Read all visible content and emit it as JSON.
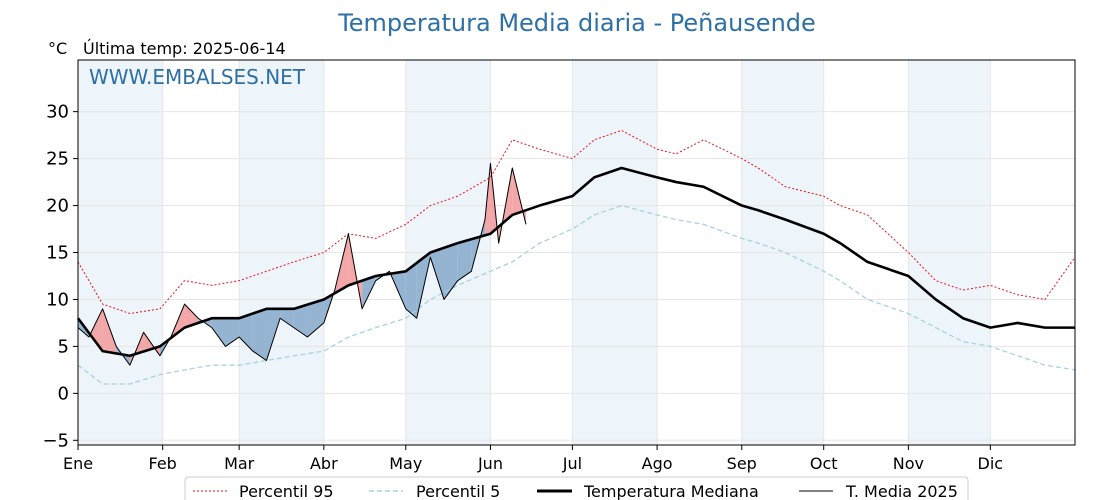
{
  "title": "Temperatura Media diaria - Peñausende",
  "unit_label": "°C",
  "last_temp_label": "Última temp: 2025-06-14",
  "watermark": "WWW.EMBALSES.NET",
  "colors": {
    "title": "#2e6fa6",
    "p95": "#e8161b",
    "p5": "#a8d1e2",
    "median": "#000000",
    "media2025": "#000000",
    "fill_above": "#f2a2a4",
    "fill_below": "#8fb0cf",
    "fill_below_dark": "#2e6fa6",
    "month_band": "#edf4fa"
  },
  "chart_data": {
    "type": "line",
    "xlabel": "",
    "ylabel": "°C",
    "ylim": [
      -5.5,
      35.5
    ],
    "yticks": [
      -5,
      0,
      5,
      10,
      15,
      20,
      25,
      30
    ],
    "ytick_labels": [
      "−5",
      "0",
      "5",
      "10",
      "15",
      "20",
      "25",
      "30"
    ],
    "month_start_days": [
      1,
      32,
      60,
      91,
      121,
      152,
      182,
      213,
      244,
      274,
      305,
      335
    ],
    "month_labels": [
      "Ene",
      "Feb",
      "Mar",
      "Abr",
      "May",
      "Jun",
      "Jul",
      "Ago",
      "Sep",
      "Oct",
      "Nov",
      "Dic"
    ],
    "x_range_days": [
      1,
      366
    ],
    "grid": true,
    "legend_position": "bottom",
    "series": [
      {
        "name": "Percentil 95",
        "style": "dotted-red",
        "days": [
          1,
          10,
          20,
          31,
          40,
          50,
          60,
          70,
          80,
          91,
          100,
          110,
          121,
          130,
          140,
          152,
          160,
          170,
          182,
          190,
          200,
          213,
          220,
          230,
          244,
          250,
          260,
          274,
          280,
          290,
          305,
          315,
          325,
          335,
          345,
          355,
          366
        ],
        "values": [
          14.0,
          9.5,
          8.5,
          9.0,
          12.0,
          11.5,
          12.0,
          13.0,
          14.0,
          15.0,
          17.0,
          16.5,
          18.0,
          20.0,
          21.0,
          23.0,
          27.0,
          26.0,
          25.0,
          27.0,
          28.0,
          26.0,
          25.5,
          27.0,
          25.0,
          24.0,
          22.0,
          21.0,
          20.0,
          19.0,
          15.0,
          12.0,
          11.0,
          11.5,
          10.5,
          10.0,
          14.5
        ]
      },
      {
        "name": "Percentil 5",
        "style": "dashed-lightblue",
        "days": [
          1,
          10,
          20,
          31,
          40,
          50,
          60,
          70,
          80,
          91,
          100,
          110,
          121,
          130,
          140,
          152,
          160,
          170,
          182,
          190,
          200,
          213,
          220,
          230,
          244,
          250,
          260,
          274,
          280,
          290,
          305,
          315,
          325,
          335,
          345,
          355,
          366
        ],
        "values": [
          3.0,
          1.0,
          1.0,
          2.0,
          2.5,
          3.0,
          3.0,
          3.5,
          4.0,
          4.5,
          6.0,
          7.0,
          8.0,
          10.0,
          11.5,
          13.0,
          14.0,
          16.0,
          17.5,
          19.0,
          20.0,
          19.0,
          18.5,
          18.0,
          16.5,
          16.0,
          15.0,
          13.0,
          12.0,
          10.0,
          8.5,
          7.0,
          5.5,
          5.0,
          4.0,
          3.0,
          2.5
        ]
      },
      {
        "name": "Temperatura Mediana",
        "style": "thick-black",
        "days": [
          1,
          10,
          20,
          31,
          40,
          50,
          60,
          70,
          80,
          91,
          100,
          110,
          121,
          130,
          140,
          152,
          160,
          170,
          182,
          190,
          200,
          213,
          220,
          230,
          244,
          250,
          260,
          274,
          280,
          290,
          305,
          315,
          325,
          335,
          345,
          355,
          366
        ],
        "values": [
          8.0,
          4.5,
          4.0,
          5.0,
          7.0,
          8.0,
          8.0,
          9.0,
          9.0,
          10.0,
          11.5,
          12.5,
          13.0,
          15.0,
          16.0,
          17.0,
          19.0,
          20.0,
          21.0,
          23.0,
          24.0,
          23.0,
          22.5,
          22.0,
          20.0,
          19.5,
          18.5,
          17.0,
          16.0,
          14.0,
          12.5,
          10.0,
          8.0,
          7.0,
          7.5,
          7.0,
          7.0
        ]
      },
      {
        "name": "T. Media 2025",
        "style": "thin-black",
        "days": [
          1,
          5,
          10,
          15,
          20,
          25,
          31,
          35,
          40,
          45,
          50,
          55,
          60,
          65,
          70,
          75,
          80,
          85,
          91,
          95,
          100,
          105,
          110,
          115,
          121,
          125,
          130,
          135,
          140,
          145,
          150,
          152,
          155,
          160,
          165
        ],
        "values": [
          7.0,
          6.0,
          9.0,
          5.0,
          3.0,
          6.5,
          4.0,
          6.0,
          9.5,
          8.0,
          7.0,
          5.0,
          6.0,
          4.5,
          3.5,
          8.0,
          7.0,
          6.0,
          7.5,
          11.0,
          17.0,
          9.0,
          12.0,
          13.0,
          9.0,
          8.0,
          14.5,
          10.0,
          12.0,
          13.0,
          18.5,
          24.5,
          16.0,
          24.0,
          18.0
        ]
      }
    ]
  },
  "legend": {
    "p95": "Percentil 95",
    "p5": "Percentil 5",
    "median": "Temperatura Mediana",
    "media2025": "T. Media 2025"
  }
}
